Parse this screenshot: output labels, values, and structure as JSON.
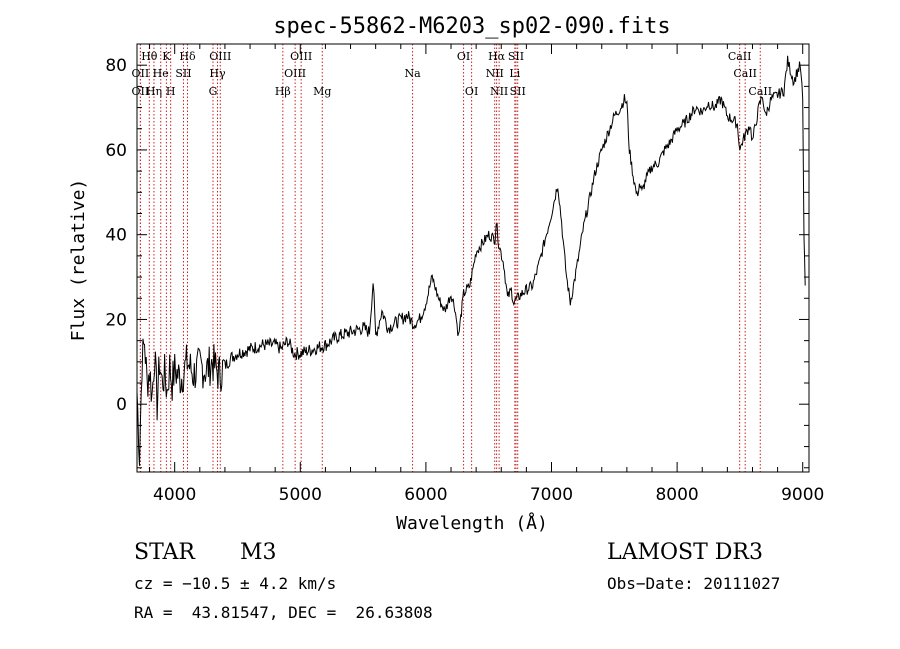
{
  "chart_data": {
    "type": "line",
    "title": "spec-55862-M6203_sp02-090.fits",
    "xlabel": "Wavelength (Å)",
    "ylabel": "Flux (relative)",
    "xlim": [
      3700,
      9050
    ],
    "ylim": [
      -16,
      85
    ],
    "xticks": [
      4000,
      5000,
      6000,
      7000,
      8000,
      9000
    ],
    "yticks": [
      0,
      20,
      40,
      60,
      80
    ],
    "x_minor_step": 200,
    "y_minor_step": 5,
    "spectrum": {
      "x": [
        3700,
        3720,
        3740,
        3760,
        3780,
        3800,
        3820,
        3840,
        3860,
        3880,
        3900,
        3920,
        3940,
        3960,
        3980,
        4000,
        4050,
        4100,
        4150,
        4200,
        4250,
        4300,
        4350,
        4400,
        4450,
        4500,
        4600,
        4700,
        4800,
        4850,
        4900,
        4950,
        5000,
        5100,
        5200,
        5300,
        5400,
        5500,
        5550,
        5580,
        5600,
        5650,
        5700,
        5750,
        5800,
        5850,
        5900,
        5950,
        6000,
        6050,
        6100,
        6150,
        6200,
        6230,
        6260,
        6300,
        6350,
        6400,
        6450,
        6500,
        6550,
        6560,
        6580,
        6620,
        6650,
        6680,
        6700,
        6730,
        6760,
        6800,
        6850,
        6900,
        6950,
        7000,
        7050,
        7080,
        7100,
        7120,
        7150,
        7200,
        7250,
        7300,
        7350,
        7400,
        7450,
        7500,
        7550,
        7580,
        7600,
        7620,
        7650,
        7680,
        7700,
        7720,
        7750,
        7800,
        7850,
        7900,
        7950,
        8000,
        8050,
        8100,
        8150,
        8200,
        8250,
        8300,
        8350,
        8400,
        8450,
        8480,
        8500,
        8520,
        8550,
        8580,
        8600,
        8650,
        8680,
        8700,
        8750,
        8800,
        8850,
        8880,
        8900,
        8930,
        8950,
        8980,
        9000,
        9010,
        9020
      ],
      "y": [
        3,
        -12,
        10,
        15,
        5,
        8,
        2,
        12,
        0,
        10,
        5,
        7,
        3,
        9,
        5,
        8,
        6,
        10,
        7,
        9,
        8,
        10,
        7,
        9,
        11,
        12,
        13,
        14,
        14,
        13,
        15,
        12,
        12,
        13,
        14,
        16,
        17,
        18,
        17,
        29,
        16,
        22,
        18,
        19,
        20,
        21,
        19,
        20,
        24,
        30,
        25,
        22,
        26,
        23,
        16,
        26,
        28,
        36,
        38,
        40,
        39,
        43,
        38,
        33,
        25,
        27,
        24,
        25,
        26,
        27,
        28,
        33,
        39,
        45,
        52,
        43,
        36,
        30,
        24,
        32,
        41,
        48,
        55,
        60,
        64,
        68,
        70,
        72,
        71,
        60,
        54,
        49,
        52,
        50,
        53,
        56,
        57,
        60,
        62,
        65,
        66,
        68,
        70,
        69,
        71,
        70,
        72,
        68,
        67,
        66,
        60,
        62,
        64,
        66,
        62,
        70,
        73,
        68,
        72,
        73,
        74,
        81,
        79,
        76,
        78,
        80,
        72,
        40,
        28
      ]
    },
    "lines": [
      {
        "name": "Hθ",
        "x": 3798,
        "row": 0
      },
      {
        "name": "OII",
        "x": 3727,
        "row": 1
      },
      {
        "name": "OII",
        "x": 3727,
        "row": 2
      },
      {
        "name": "Hη",
        "x": 3835,
        "row": 2
      },
      {
        "name": "He",
        "x": 3889,
        "row": 1
      },
      {
        "name": "K",
        "x": 3934,
        "row": 0
      },
      {
        "name": "SII",
        "x": 4070,
        "row": 1
      },
      {
        "name": "H",
        "x": 3968,
        "row": 2
      },
      {
        "name": "Hδ",
        "x": 4102,
        "row": 0
      },
      {
        "name": "OIII",
        "x": 4363,
        "row": 0
      },
      {
        "name": "Hγ",
        "x": 4341,
        "row": 1
      },
      {
        "name": "G",
        "x": 4305,
        "row": 2
      },
      {
        "name": "Hβ",
        "x": 4861,
        "row": 2
      },
      {
        "name": "OIII",
        "x": 5007,
        "row": 0
      },
      {
        "name": "OIII",
        "x": 4959,
        "row": 1
      },
      {
        "name": "Mg",
        "x": 5175,
        "row": 2
      },
      {
        "name": "Na",
        "x": 5894,
        "row": 1
      },
      {
        "name": "OI",
        "x": 6300,
        "row": 0
      },
      {
        "name": "OI",
        "x": 6364,
        "row": 2
      },
      {
        "name": "Hα",
        "x": 6563,
        "row": 0
      },
      {
        "name": "NII",
        "x": 6548,
        "row": 1
      },
      {
        "name": "NII",
        "x": 6583,
        "row": 2
      },
      {
        "name": "SII",
        "x": 6717,
        "row": 0
      },
      {
        "name": "Li",
        "x": 6708,
        "row": 1
      },
      {
        "name": "SII",
        "x": 6731,
        "row": 2
      },
      {
        "name": "CaII",
        "x": 8498,
        "row": 0
      },
      {
        "name": "CaII",
        "x": 8542,
        "row": 1
      },
      {
        "name": "CaII",
        "x": 8662,
        "row": 2
      }
    ]
  },
  "info": {
    "object_type": "STAR",
    "subclass": "M3",
    "survey": "LAMOST DR3",
    "cz": "cz = −10.5 ± 4.2 km/s",
    "obs_date": "Obs−Date: 20111027",
    "coords": "RA =  43.81547, DEC =  26.63808"
  }
}
